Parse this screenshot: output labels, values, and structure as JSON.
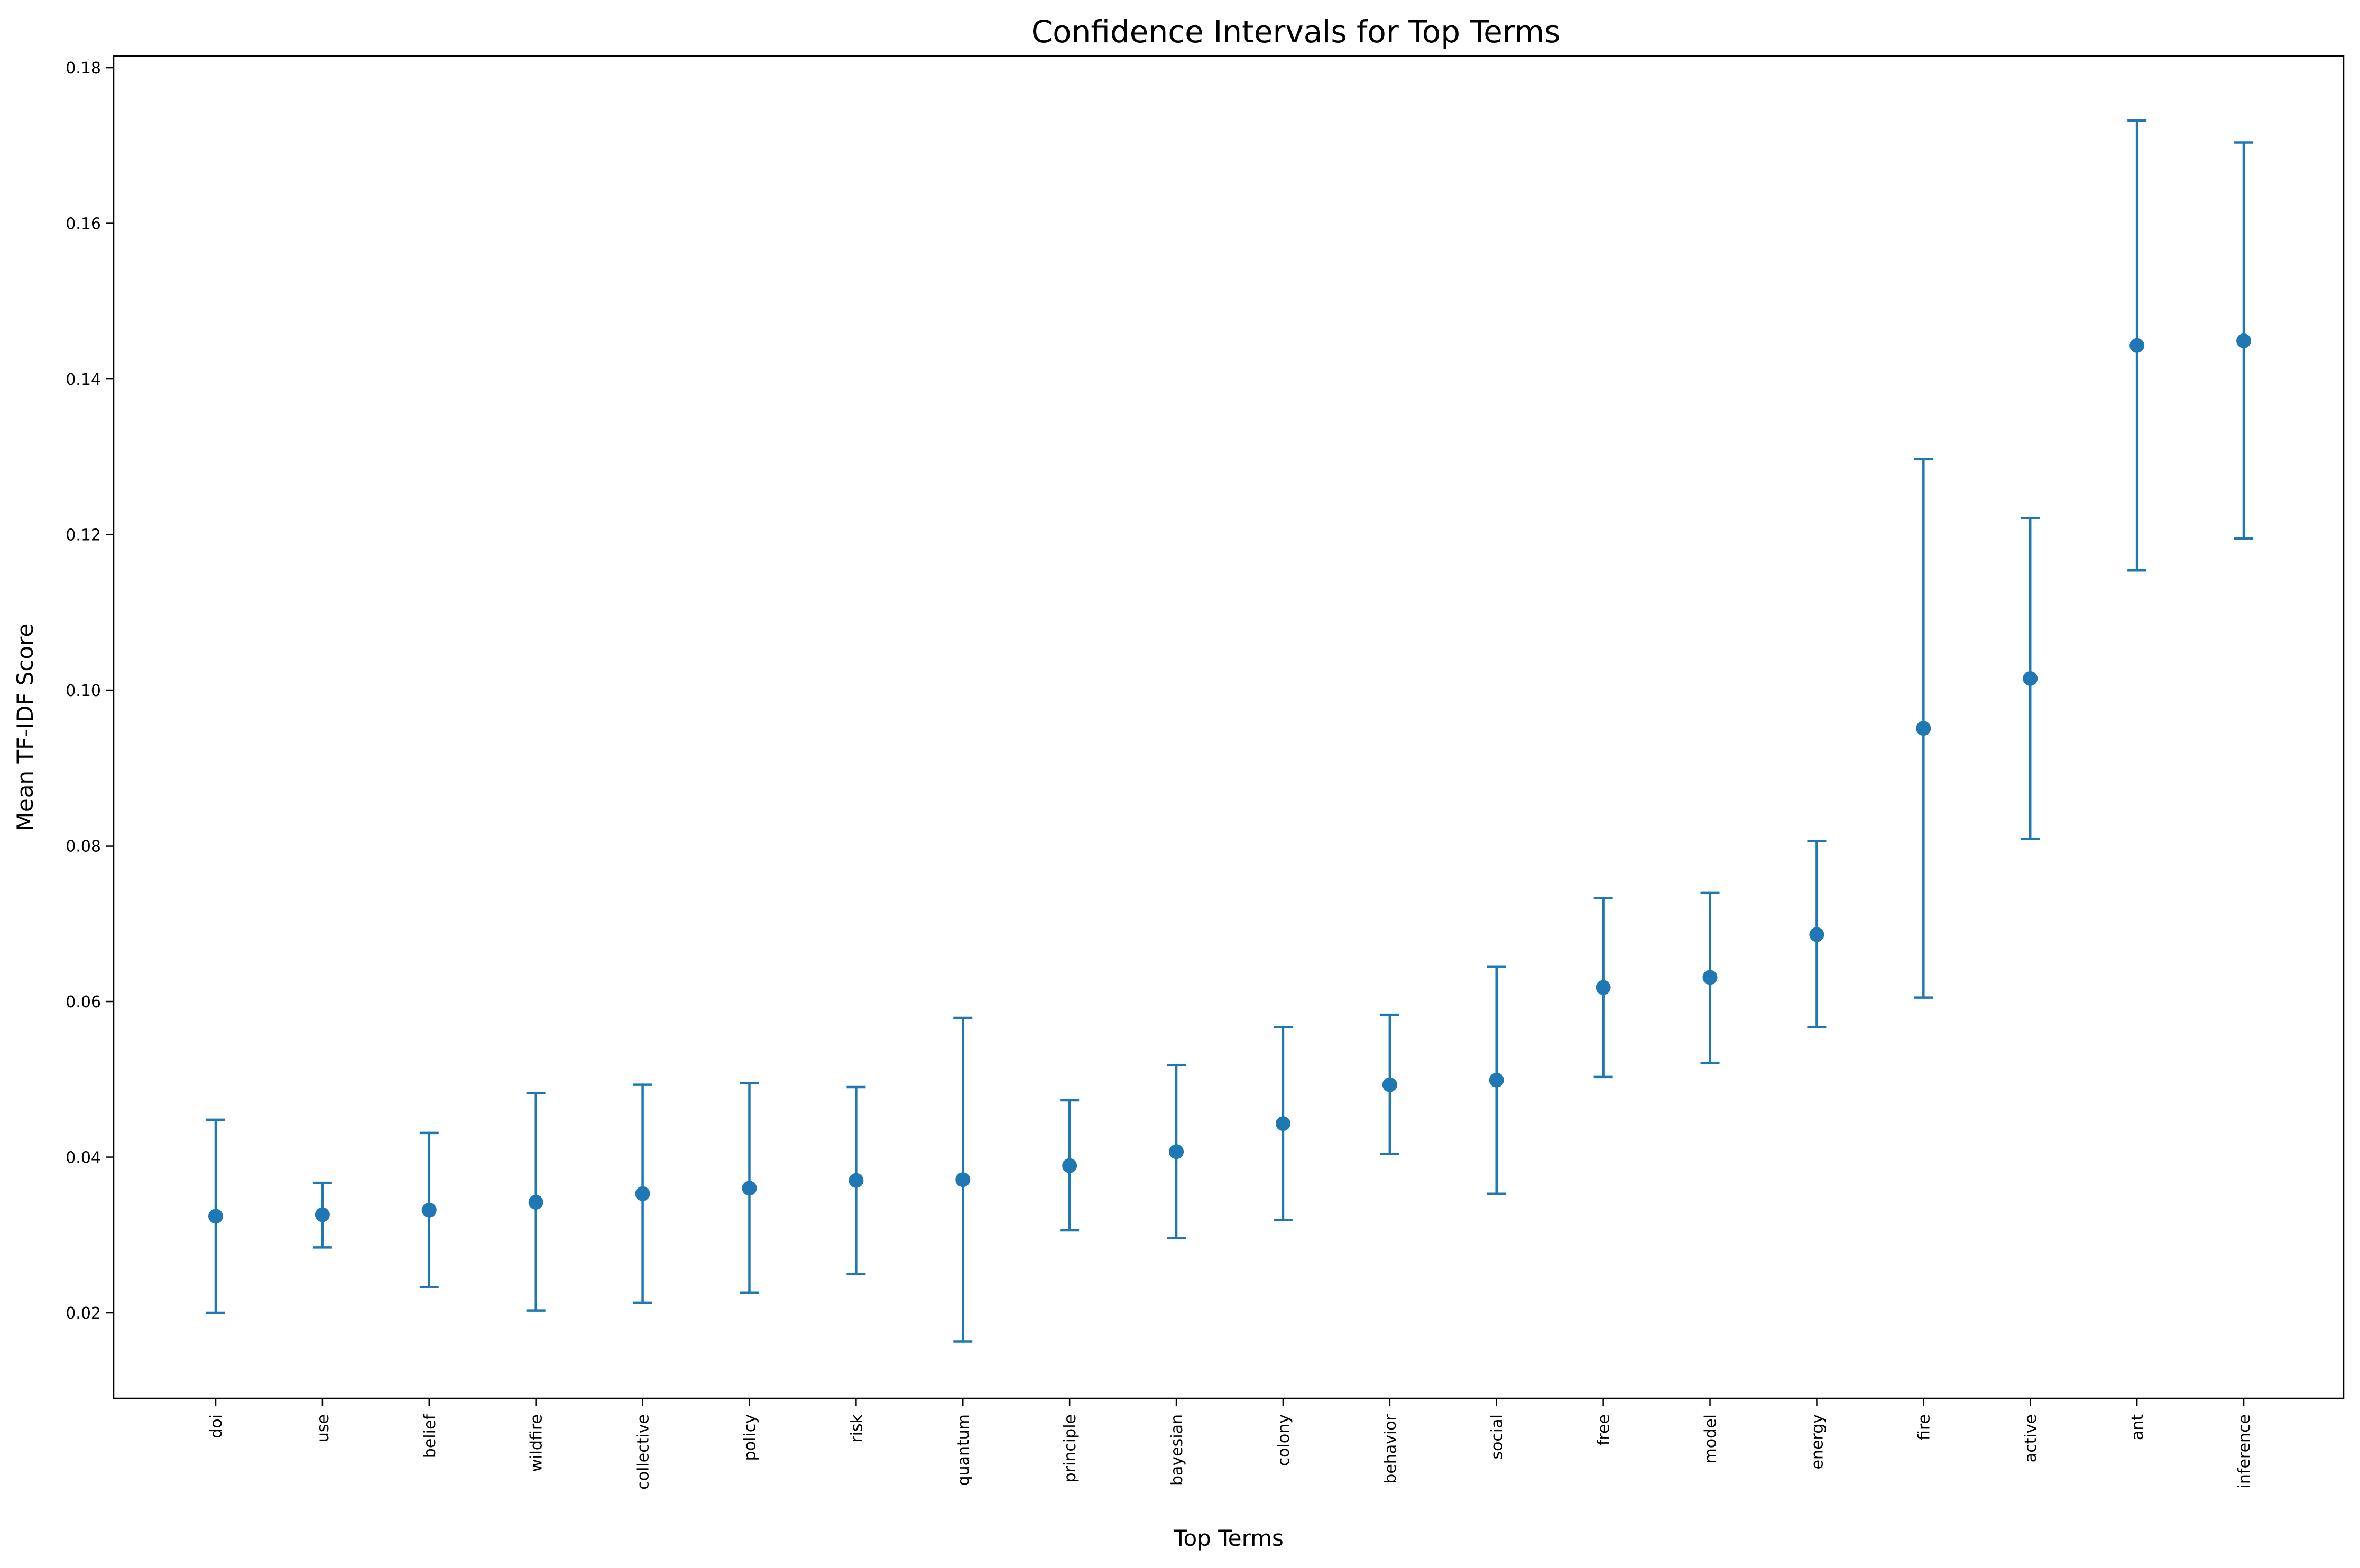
{
  "chart_data": {
    "type": "errorbar",
    "title": "Confidence Intervals for Top Terms",
    "xlabel": "Top Terms",
    "ylabel": "Mean TF-IDF Score",
    "ylim": [
      0.009,
      0.1815
    ],
    "y_ticks": [
      0.02,
      0.04,
      0.06,
      0.08,
      0.1,
      0.12,
      0.14,
      0.16,
      0.18
    ],
    "y_tick_labels": [
      "0.02",
      "0.04",
      "0.06",
      "0.08",
      "0.10",
      "0.12",
      "0.14",
      "0.16",
      "0.18"
    ],
    "grid": false,
    "color": "#1f77b4",
    "points": [
      {
        "term": "doi",
        "mean": 0.0324,
        "lower": 0.02,
        "upper": 0.0448
      },
      {
        "term": "use",
        "mean": 0.0326,
        "lower": 0.0284,
        "upper": 0.0367
      },
      {
        "term": "belief",
        "mean": 0.0332,
        "lower": 0.0233,
        "upper": 0.0431
      },
      {
        "term": "wildfire",
        "mean": 0.0342,
        "lower": 0.0203,
        "upper": 0.0482
      },
      {
        "term": "collective",
        "mean": 0.0353,
        "lower": 0.0213,
        "upper": 0.0493
      },
      {
        "term": "policy",
        "mean": 0.036,
        "lower": 0.0226,
        "upper": 0.0495
      },
      {
        "term": "risk",
        "mean": 0.037,
        "lower": 0.025,
        "upper": 0.049
      },
      {
        "term": "quantum",
        "mean": 0.0371,
        "lower": 0.0163,
        "upper": 0.0579
      },
      {
        "term": "principle",
        "mean": 0.0389,
        "lower": 0.0306,
        "upper": 0.0473
      },
      {
        "term": "bayesian",
        "mean": 0.0407,
        "lower": 0.0296,
        "upper": 0.0518
      },
      {
        "term": "colony",
        "mean": 0.0443,
        "lower": 0.0319,
        "upper": 0.0567
      },
      {
        "term": "behavior",
        "mean": 0.0493,
        "lower": 0.0404,
        "upper": 0.0583
      },
      {
        "term": "social",
        "mean": 0.0499,
        "lower": 0.0353,
        "upper": 0.0645
      },
      {
        "term": "free",
        "mean": 0.0618,
        "lower": 0.0503,
        "upper": 0.0733
      },
      {
        "term": "model",
        "mean": 0.0631,
        "lower": 0.0521,
        "upper": 0.074
      },
      {
        "term": "energy",
        "mean": 0.0686,
        "lower": 0.0567,
        "upper": 0.0806
      },
      {
        "term": "fire",
        "mean": 0.0951,
        "lower": 0.0605,
        "upper": 0.1297
      },
      {
        "term": "active",
        "mean": 0.1015,
        "lower": 0.0809,
        "upper": 0.1221
      },
      {
        "term": "ant",
        "mean": 0.1443,
        "lower": 0.1154,
        "upper": 0.1732
      },
      {
        "term": "inference",
        "mean": 0.1449,
        "lower": 0.1195,
        "upper": 0.1704
      }
    ]
  }
}
